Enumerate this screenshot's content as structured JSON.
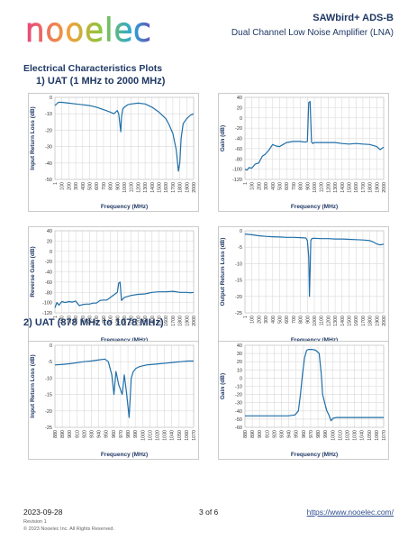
{
  "header": {
    "logo_text": "nooelec",
    "title": "SAWbird+ ADS-B",
    "subtitle": "Dual Channel Low Noise Amplifier (LNA)"
  },
  "section_title": "Electrical Characteristics Plots",
  "subsection1": "1) UAT (1 MHz to 2000 MHz)",
  "subsection2": "2) UAT (878 MHz to 1078 MHz)",
  "colors": {
    "trace": "#1f6fa8",
    "text": "#1f3864",
    "grid": "#d9d9d9"
  },
  "chart_data": [
    {
      "id": "c1",
      "type": "line",
      "xlabel": "Frequency (MHz)",
      "ylabel": "Input Return Loss (dB)",
      "ylim": [
        -50,
        0
      ],
      "yticks": [
        0,
        -10,
        -20,
        -30,
        -40,
        -50
      ],
      "xlim": [
        1,
        2000
      ],
      "xtick_labels": [
        "1",
        "100",
        "200",
        "300",
        "400",
        "500",
        "600",
        "700",
        "800",
        "900",
        "1000",
        "1100",
        "1200",
        "1300",
        "1400",
        "1500",
        "1600",
        "1700",
        "1800",
        "1900",
        "2000"
      ],
      "x": [
        1,
        50,
        100,
        200,
        300,
        400,
        500,
        600,
        700,
        800,
        850,
        900,
        920,
        950,
        960,
        975,
        980,
        1000,
        1050,
        1100,
        1200,
        1300,
        1400,
        1500,
        1600,
        1650,
        1700,
        1750,
        1780,
        1800,
        1820,
        1850,
        1900,
        1950,
        2000
      ],
      "y": [
        -5,
        -3,
        -3,
        -3.5,
        -4,
        -4.5,
        -5,
        -6,
        -7.5,
        -9,
        -10,
        -8,
        -10,
        -21,
        -12,
        -8,
        -7,
        -6,
        -4.5,
        -4,
        -3.5,
        -4,
        -6,
        -9,
        -13,
        -17,
        -22,
        -32,
        -45,
        -40,
        -25,
        -16,
        -13,
        -11,
        -10
      ]
    },
    {
      "id": "c2",
      "type": "line",
      "xlabel": "Frequency (MHz)",
      "ylabel": "Gain (dB)",
      "ylim": [
        -120,
        40
      ],
      "yticks": [
        40,
        20,
        0,
        -20,
        -40,
        -60,
        -80,
        -100,
        -120
      ],
      "xlim": [
        1,
        2000
      ],
      "xtick_labels": [
        "1",
        "100",
        "200",
        "300",
        "400",
        "500",
        "600",
        "700",
        "800",
        "900",
        "1000",
        "1100",
        "1200",
        "1300",
        "1400",
        "1500",
        "1600",
        "1700",
        "1800",
        "1900",
        "2000"
      ],
      "x": [
        1,
        30,
        60,
        100,
        150,
        200,
        250,
        300,
        350,
        400,
        450,
        500,
        550,
        600,
        700,
        800,
        850,
        880,
        900,
        920,
        940,
        960,
        980,
        1000,
        1050,
        1100,
        1200,
        1300,
        1400,
        1500,
        1600,
        1700,
        1800,
        1900,
        1950,
        2000
      ],
      "y": [
        -100,
        -102,
        -97,
        -98,
        -90,
        -88,
        -75,
        -70,
        -62,
        -52,
        -55,
        -56,
        -52,
        -48,
        -46,
        -46,
        -47,
        -47,
        -46,
        30,
        32,
        -47,
        -50,
        -48,
        -48,
        -48,
        -48,
        -48,
        -50,
        -51,
        -50,
        -51,
        -52,
        -56,
        -62,
        -57
      ]
    },
    {
      "id": "c3",
      "type": "line",
      "xlabel": "Frequency (MHz)",
      "ylabel": "Reverse Gain (dB)",
      "ylim": [
        -120,
        40
      ],
      "yticks": [
        40,
        20,
        0,
        -20,
        -40,
        -60,
        -80,
        -100,
        -120
      ],
      "xlim": [
        1,
        2000
      ],
      "xtick_labels": [
        "1",
        "100",
        "200",
        "300",
        "400",
        "500",
        "600",
        "700",
        "800",
        "900",
        "1000",
        "1100",
        "1200",
        "1300",
        "1400",
        "1500",
        "1600",
        "1700",
        "1800",
        "1900",
        "2000"
      ],
      "x": [
        1,
        30,
        60,
        100,
        150,
        200,
        250,
        300,
        350,
        400,
        450,
        500,
        550,
        600,
        650,
        700,
        750,
        800,
        850,
        880,
        900,
        920,
        940,
        960,
        980,
        1000,
        1050,
        1100,
        1200,
        1300,
        1400,
        1500,
        1600,
        1700,
        1800,
        1900,
        1950,
        2000
      ],
      "y": [
        -110,
        -100,
        -105,
        -98,
        -100,
        -98,
        -99,
        -97,
        -106,
        -104,
        -103,
        -103,
        -101,
        -101,
        -96,
        -95,
        -95,
        -90,
        -85,
        -82,
        -80,
        -62,
        -60,
        -96,
        -93,
        -90,
        -88,
        -86,
        -84,
        -83,
        -80,
        -79,
        -79,
        -78,
        -80,
        -80,
        -81,
        -80
      ]
    },
    {
      "id": "c4",
      "type": "line",
      "xlabel": "Frequency (MHz)",
      "ylabel": "Output Return Loss (dB)",
      "ylim": [
        -25,
        0
      ],
      "yticks": [
        0,
        -5,
        -10,
        -15,
        -20,
        -25
      ],
      "xlim": [
        1,
        2000
      ],
      "xtick_labels": [
        "1",
        "100",
        "200",
        "300",
        "400",
        "500",
        "600",
        "700",
        "800",
        "900",
        "1000",
        "1100",
        "1200",
        "1300",
        "1400",
        "1500",
        "1600",
        "1700",
        "1800",
        "1900",
        "2000"
      ],
      "x": [
        1,
        100,
        200,
        300,
        400,
        500,
        600,
        700,
        800,
        880,
        900,
        920,
        930,
        945,
        950,
        960,
        980,
        1000,
        1100,
        1200,
        1300,
        1400,
        1500,
        1600,
        1700,
        1800,
        1850,
        1900,
        1950,
        2000
      ],
      "y": [
        -1,
        -1.2,
        -1.5,
        -1.7,
        -1.8,
        -1.9,
        -2,
        -2,
        -2.1,
        -2.2,
        -3,
        -8,
        -20,
        -8,
        -3,
        -2.5,
        -2.3,
        -2.3,
        -2.4,
        -2.4,
        -2.5,
        -2.5,
        -2.6,
        -2.7,
        -2.8,
        -3,
        -3.4,
        -4,
        -4.3,
        -4.1
      ]
    },
    {
      "id": "c5",
      "type": "line",
      "xlabel": "Frequency (MHz)",
      "ylabel": "Input Return Loss (dB)",
      "ylim": [
        -25,
        0
      ],
      "yticks": [
        0,
        -5,
        -10,
        -15,
        -20,
        -25
      ],
      "xlim": [
        878,
        1078
      ],
      "xtick_labels": [
        "880",
        "890",
        "900",
        "910",
        "920",
        "930",
        "940",
        "950",
        "960",
        "970",
        "980",
        "990",
        "1000",
        "1010",
        "1020",
        "1030",
        "1040",
        "1050",
        "1060",
        "1070"
      ],
      "x": [
        878,
        890,
        900,
        910,
        920,
        930,
        940,
        950,
        955,
        960,
        963,
        966,
        970,
        975,
        978,
        981,
        985,
        988,
        991,
        995,
        1000,
        1010,
        1020,
        1030,
        1040,
        1050,
        1060,
        1070,
        1078
      ],
      "y": [
        -6,
        -5.8,
        -5.6,
        -5.3,
        -5,
        -4.8,
        -4.5,
        -4.2,
        -5,
        -9,
        -15,
        -8,
        -12,
        -15,
        -9,
        -14,
        -22,
        -10,
        -8,
        -7,
        -6.5,
        -6,
        -5.8,
        -5.6,
        -5.4,
        -5.2,
        -5,
        -4.8,
        -4.8
      ]
    },
    {
      "id": "c6",
      "type": "line",
      "xlabel": "Frequency (MHz)",
      "ylabel": "Gain (dB)",
      "ylim": [
        -60,
        40
      ],
      "yticks": [
        40,
        30,
        20,
        10,
        0,
        -10,
        -20,
        -30,
        -40,
        -50,
        -60
      ],
      "xlim": [
        878,
        1078
      ],
      "xtick_labels": [
        "880",
        "890",
        "900",
        "910",
        "920",
        "930",
        "940",
        "950",
        "960",
        "970",
        "980",
        "990",
        "1000",
        "1010",
        "1020",
        "1030",
        "1040",
        "1050",
        "1060",
        "1070"
      ],
      "x": [
        878,
        890,
        900,
        910,
        920,
        930,
        940,
        950,
        955,
        958,
        961,
        964,
        967,
        970,
        975,
        980,
        985,
        988,
        990,
        993,
        996,
        999,
        1002,
        1005,
        1010,
        1020,
        1030,
        1040,
        1050,
        1060,
        1070,
        1078
      ],
      "y": [
        -46,
        -46,
        -46,
        -46,
        -46,
        -46,
        -46,
        -45,
        -40,
        -20,
        5,
        25,
        34,
        35,
        35,
        34,
        30,
        5,
        -20,
        -30,
        -40,
        -45,
        -52,
        -49,
        -48,
        -48,
        -48,
        -48,
        -48,
        -48,
        -48,
        -48
      ]
    }
  ],
  "footer": {
    "date": "2023-09-28",
    "page": "3 of 6",
    "url": "https://www.nooelec.com/",
    "revision": "Revision 1",
    "copyright": "© 2023 Nooelec Inc. All Rights Reserved."
  }
}
